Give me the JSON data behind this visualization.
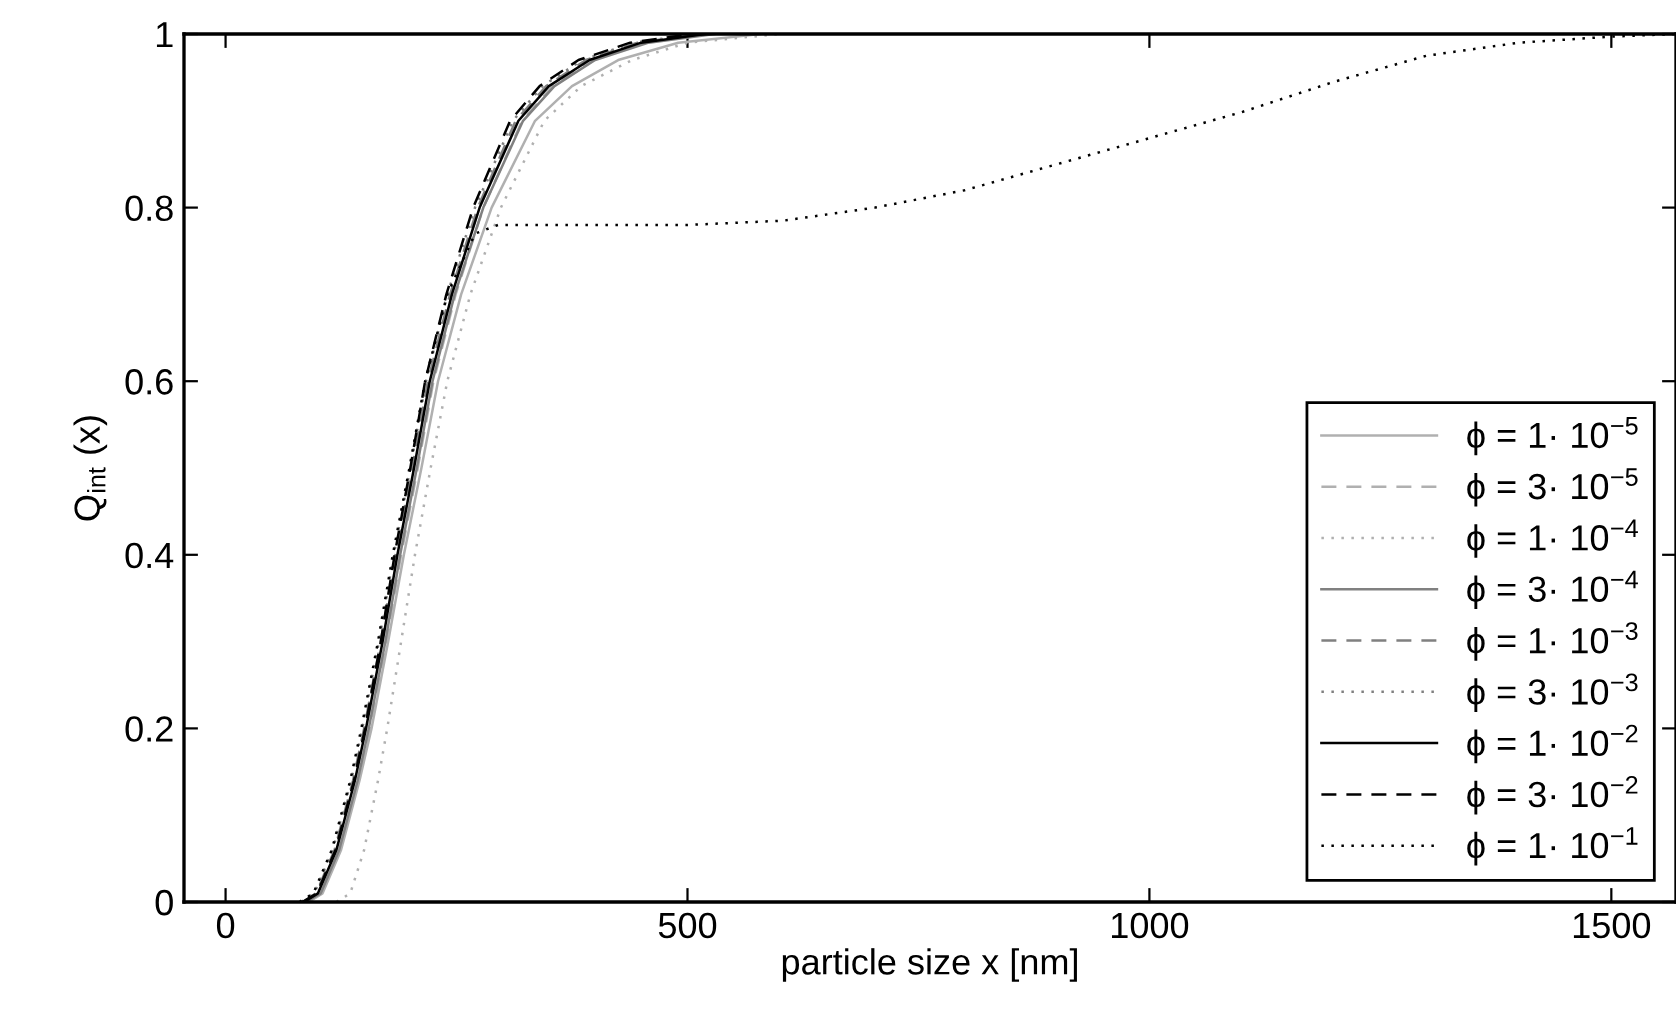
{
  "chart_data": {
    "type": "line",
    "xlabel": "particle size x [nm]",
    "ylabel": "Q$_{int}$ (x)",
    "xlim": [
      -45,
      1570
    ],
    "ylim": [
      0,
      1
    ],
    "xticks": [
      0,
      500,
      1000,
      1500
    ],
    "yticks": [
      0,
      0.2,
      0.4,
      0.6,
      0.8,
      1
    ],
    "grid": false,
    "legend": "lower right",
    "marker": "none",
    "series": [
      {
        "name": "ϕ = 1· 10$^{−5}$",
        "color": "#b0b0b0",
        "line_style": "solid",
        "x": [
          90,
          105,
          125,
          145,
          158,
          176,
          193,
          212,
          230,
          255,
          288,
          335,
          375,
          425,
          490,
          580
        ],
        "values": [
          0,
          0.01,
          0.06,
          0.14,
          0.2,
          0.3,
          0.4,
          0.5,
          0.6,
          0.7,
          0.8,
          0.9,
          0.94,
          0.97,
          0.99,
          1
        ]
      },
      {
        "name": "ϕ = 3· 10$^{−5}$",
        "color": "#b0b0b0",
        "line_style": "dashed",
        "x": [
          89,
          104,
          124,
          144,
          156,
          174,
          190,
          208,
          225,
          249,
          279,
          321,
          354,
          398,
          454,
          524
        ],
        "values": [
          0,
          0.01,
          0.06,
          0.14,
          0.2,
          0.3,
          0.4,
          0.5,
          0.6,
          0.7,
          0.8,
          0.9,
          0.94,
          0.97,
          0.99,
          1
        ]
      },
      {
        "name": "ϕ = 1· 10$^{−4}$",
        "color": "#b0b0b0",
        "line_style": "dotted",
        "x": [
          120,
          135,
          150,
          165,
          175,
          190,
          205,
          222,
          240,
          265,
          298,
          345,
          385,
          440,
          500,
          600
        ],
        "values": [
          0,
          0.01,
          0.06,
          0.14,
          0.2,
          0.3,
          0.4,
          0.5,
          0.6,
          0.7,
          0.8,
          0.9,
          0.94,
          0.97,
          0.99,
          1
        ]
      },
      {
        "name": "ϕ = 3· 10$^{−4}$",
        "color": "#808080",
        "line_style": "solid",
        "x": [
          87,
          103,
          123,
          143,
          155,
          173,
          189,
          207,
          224,
          248,
          279,
          322,
          356,
          400,
          458,
          530
        ],
        "values": [
          0,
          0.01,
          0.06,
          0.14,
          0.2,
          0.3,
          0.4,
          0.5,
          0.6,
          0.7,
          0.8,
          0.9,
          0.94,
          0.97,
          0.99,
          1
        ]
      },
      {
        "name": "ϕ = 1· 10$^{−3}$",
        "color": "#808080",
        "line_style": "dashed",
        "x": [
          84,
          98,
          118,
          138,
          150,
          168,
          184,
          202,
          219,
          243,
          273,
          314,
          347,
          390,
          446,
          515
        ],
        "values": [
          0,
          0.01,
          0.06,
          0.14,
          0.2,
          0.3,
          0.4,
          0.5,
          0.6,
          0.7,
          0.8,
          0.9,
          0.94,
          0.97,
          0.99,
          1
        ]
      },
      {
        "name": "ϕ = 3· 10$^{−3}$",
        "color": "#808080",
        "line_style": "dotted",
        "x": [
          82,
          96,
          116,
          136,
          148,
          166,
          182,
          200,
          217,
          240,
          270,
          311,
          343,
          386,
          442,
          510
        ],
        "values": [
          0,
          0.01,
          0.06,
          0.14,
          0.2,
          0.3,
          0.4,
          0.5,
          0.6,
          0.7,
          0.8,
          0.9,
          0.94,
          0.97,
          0.99,
          1
        ]
      },
      {
        "name": "ϕ = 1· 10$^{−2}$",
        "color": "#000000",
        "line_style": "solid",
        "x": [
          85,
          100,
          120,
          140,
          152,
          170,
          186,
          204,
          221,
          245,
          275,
          317,
          350,
          394,
          450,
          520
        ],
        "values": [
          0,
          0.01,
          0.06,
          0.14,
          0.2,
          0.3,
          0.4,
          0.5,
          0.6,
          0.7,
          0.8,
          0.9,
          0.94,
          0.97,
          0.99,
          1
        ]
      },
      {
        "name": "ϕ = 3· 10$^{−2}$",
        "color": "#000000",
        "line_style": "dashed",
        "x": [
          83,
          99,
          119,
          139,
          151,
          168,
          183,
          200,
          216,
          239,
          268,
          308,
          340,
          382,
          438,
          505
        ],
        "values": [
          0,
          0.01,
          0.06,
          0.14,
          0.2,
          0.3,
          0.4,
          0.5,
          0.6,
          0.7,
          0.8,
          0.9,
          0.94,
          0.97,
          0.99,
          1
        ]
      },
      {
        "name": "ϕ = 1· 10$^{−1}$",
        "color": "#000000",
        "line_style": "dotted",
        "x": [
          80,
          95,
          115,
          135,
          147,
          165,
          181,
          199,
          216,
          240,
          270,
          295,
          500,
          604,
          703,
          800,
          900,
          1000,
          1100,
          1200,
          1300,
          1400,
          1500,
          1570
        ],
        "values": [
          0,
          0.01,
          0.06,
          0.14,
          0.2,
          0.3,
          0.4,
          0.5,
          0.6,
          0.7,
          0.77,
          0.78,
          0.78,
          0.785,
          0.8,
          0.82,
          0.85,
          0.88,
          0.91,
          0.945,
          0.975,
          0.99,
          0.997,
          1
        ]
      }
    ]
  }
}
